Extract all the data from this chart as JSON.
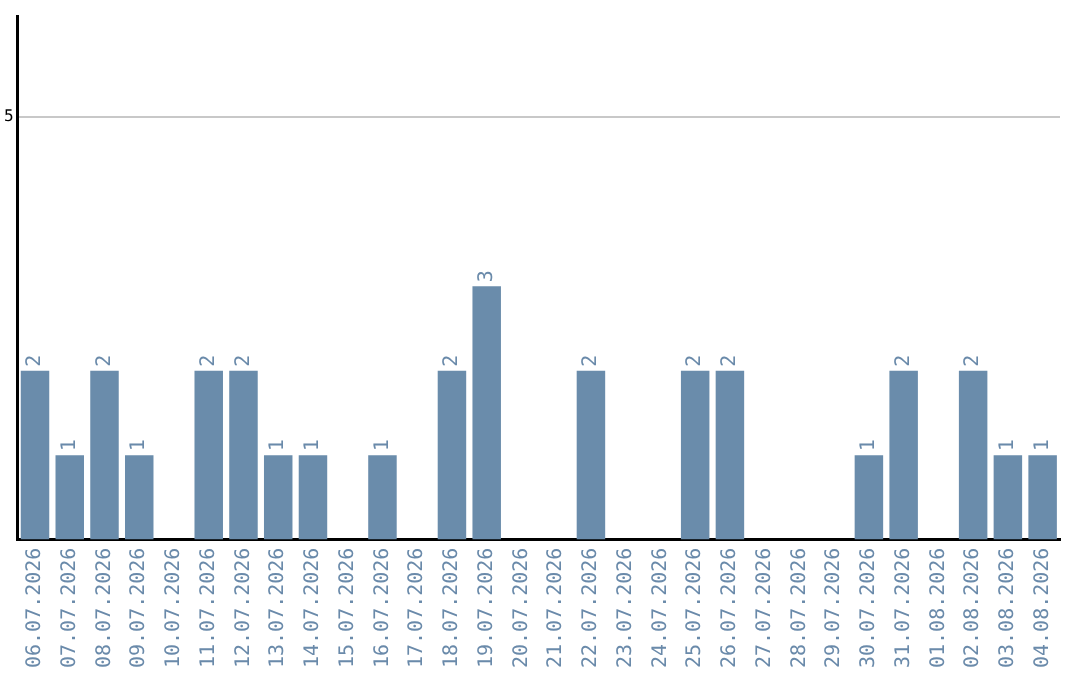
{
  "chart_data": {
    "type": "bar",
    "categories": [
      "06.07.2026",
      "07.07.2026",
      "08.07.2026",
      "09.07.2026",
      "10.07.2026",
      "11.07.2026",
      "12.07.2026",
      "13.07.2026",
      "14.07.2026",
      "15.07.2026",
      "16.07.2026",
      "17.07.2026",
      "18.07.2026",
      "19.07.2026",
      "20.07.2026",
      "21.07.2026",
      "22.07.2026",
      "23.07.2026",
      "24.07.2026",
      "25.07.2026",
      "26.07.2026",
      "27.07.2026",
      "28.07.2026",
      "29.07.2026",
      "30.07.2026",
      "31.07.2026",
      "01.08.2026",
      "02.08.2026",
      "03.08.2026",
      "04.08.2026"
    ],
    "values": [
      2,
      1,
      2,
      1,
      0,
      2,
      2,
      1,
      1,
      0,
      1,
      0,
      2,
      3,
      0,
      0,
      2,
      0,
      0,
      2,
      2,
      0,
      0,
      0,
      1,
      2,
      0,
      2,
      1,
      1
    ],
    "value_labels": [
      "2",
      "1",
      "2",
      "1",
      null,
      "2",
      "2",
      "1",
      "1",
      null,
      "1",
      null,
      "2",
      "3",
      null,
      null,
      "2",
      null,
      null,
      "2",
      "2",
      null,
      null,
      null,
      "1",
      "2",
      null,
      "2",
      "1",
      "1"
    ],
    "color": "#6a8cab",
    "ylim": [
      0,
      6.2
    ],
    "yticks": [
      5
    ],
    "grid": "y",
    "legend": false
  }
}
